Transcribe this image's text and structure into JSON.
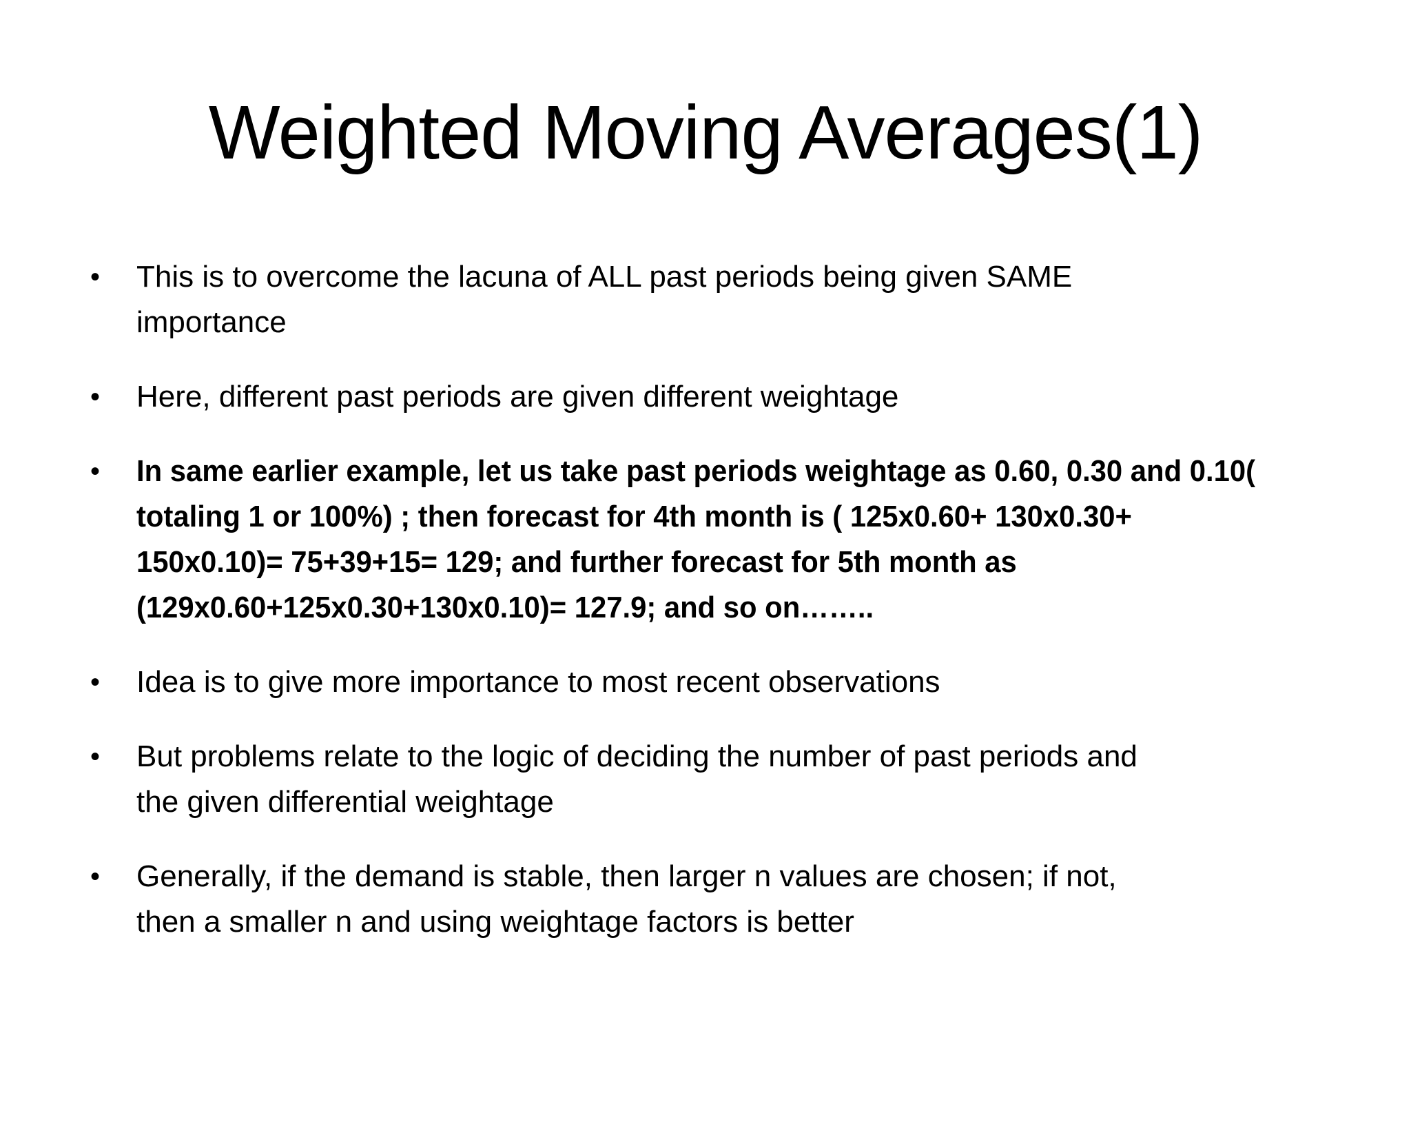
{
  "slide": {
    "title": "Weighted Moving Averages(1)",
    "bullet_char": "•",
    "background_color": "#ffffff",
    "text_color": "#000000",
    "bullets": [
      {
        "bold": false,
        "lines": [
          "This is to overcome the lacuna of ALL past periods being given SAME",
          "importance"
        ]
      },
      {
        "bold": false,
        "lines": [
          "Here, different past periods are given different weightage"
        ]
      },
      {
        "bold": true,
        "lines": [
          "In same earlier example, let us take past periods weightage as 0.60, 0.30 and 0.10(",
          "totaling 1 or 100%) ; then forecast for 4th month is ( 125x0.60+ 130x0.30+",
          "150x0.10)= 75+39+15= 129; and further forecast for 5th month as",
          "(129x0.60+125x0.30+130x0.10)= 127.9; and so on…….."
        ]
      },
      {
        "bold": false,
        "lines": [
          "Idea is to give more importance to most recent observations"
        ]
      },
      {
        "bold": false,
        "lines": [
          "But problems relate to the logic of deciding the number of past periods and",
          "the given differential weightage"
        ]
      },
      {
        "bold": false,
        "lines": [
          "Generally, if the demand is stable, then larger n values are chosen; if not,",
          "then a smaller n and using weightage factors is better"
        ]
      }
    ]
  }
}
